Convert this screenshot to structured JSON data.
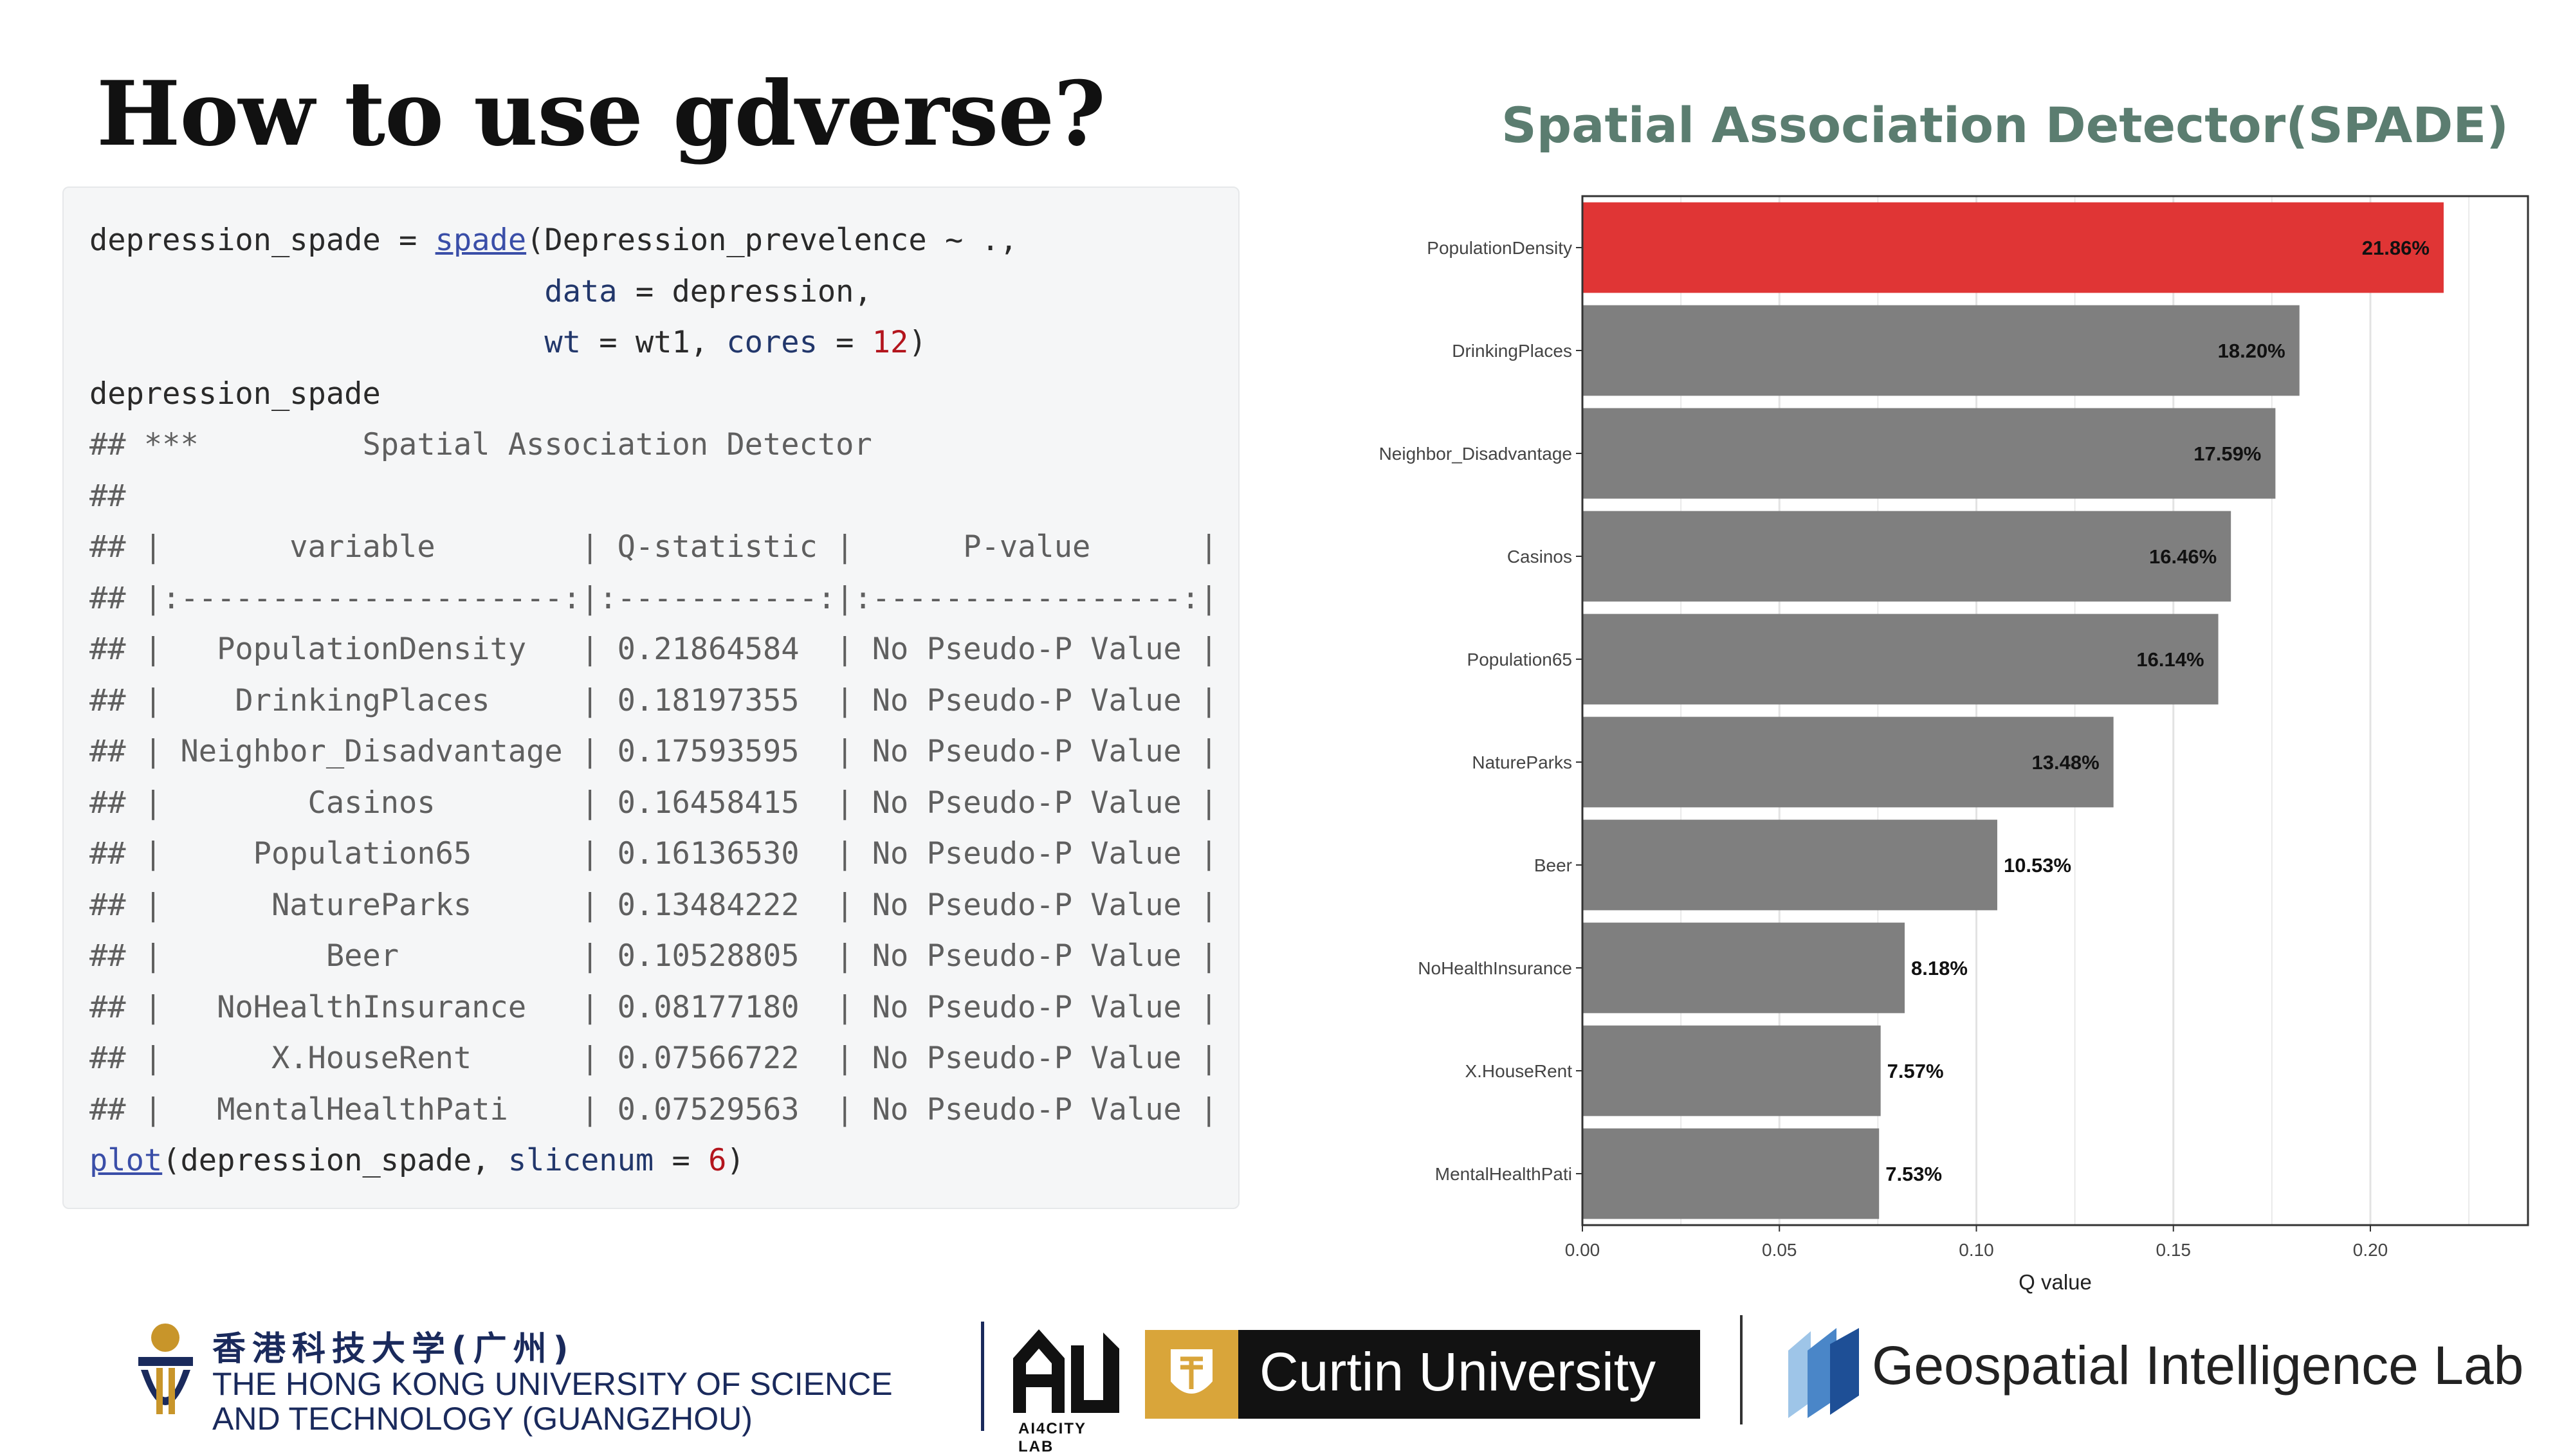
{
  "title": "How to use gdverse?",
  "subtitle": "Spatial Association Detector(SPADE)",
  "code": {
    "call_line1_var": "depression_spade",
    "call_line1_op": " = ",
    "call_line1_fn": "spade",
    "call_line1_rest": "(Depression_prevelence ~ .,",
    "call_line2_arg": "data",
    "call_line2_rest": " = depression,",
    "call_line3_arg": "wt",
    "call_line3_mid": " = wt1, ",
    "call_line3_arg2": "cores",
    "call_line3_eq": " = ",
    "call_line3_num": "12",
    "call_line3_close": ")",
    "print_line": "depression_spade",
    "output_lines": [
      "## ***         Spatial Association Detector",
      "##",
      "## |       variable        | Q-statistic |      P-value      |",
      "## |:---------------------:|:-----------:|:-----------------:|",
      "## |   PopulationDensity   | 0.21864584  | No Pseudo-P Value |",
      "## |    DrinkingPlaces     | 0.18197355  | No Pseudo-P Value |",
      "## | Neighbor_Disadvantage | 0.17593595  | No Pseudo-P Value |",
      "## |        Casinos        | 0.16458415  | No Pseudo-P Value |",
      "## |     Population65      | 0.16136530  | No Pseudo-P Value |",
      "## |      NatureParks      | 0.13484222  | No Pseudo-P Value |",
      "## |         Beer          | 0.10528805  | No Pseudo-P Value |",
      "## |   NoHealthInsurance   | 0.08177180  | No Pseudo-P Value |",
      "## |      X.HouseRent      | 0.07566722  | No Pseudo-P Value |",
      "## |   MentalHealthPati    | 0.07529563  | No Pseudo-P Value |"
    ],
    "plot_fn": "plot",
    "plot_rest": "(depression_spade, ",
    "plot_arg": "slicenum",
    "plot_eq": " = ",
    "plot_num": "6",
    "plot_close": ")"
  },
  "chart_data": {
    "type": "bar",
    "orientation": "horizontal",
    "categories": [
      "PopulationDensity",
      "DrinkingPlaces",
      "Neighbor_Disadvantage",
      "Casinos",
      "Population65",
      "NatureParks",
      "Beer",
      "NoHealthInsurance",
      "X.HouseRent",
      "MentalHealthPati"
    ],
    "values": [
      0.2186,
      0.182,
      0.1759,
      0.1646,
      0.1614,
      0.1348,
      0.1053,
      0.0818,
      0.0757,
      0.0753
    ],
    "labels": [
      "21.86%",
      "18.20%",
      "17.59%",
      "16.46%",
      "16.14%",
      "13.48%",
      "10.53%",
      "8.18%",
      "7.57%",
      "7.53%"
    ],
    "highlight_color": "#e03535",
    "bar_color": "#7f7f7f",
    "xlabel": "Q value",
    "ylabel": "",
    "xlim": [
      0,
      0.24
    ],
    "xticks": [
      "0.00",
      "0.05",
      "0.10",
      "0.15",
      "0.20"
    ],
    "xtick_values": [
      0,
      0.05,
      0.1,
      0.15,
      0.2
    ],
    "grid": true
  },
  "logos": {
    "hkust_cn": "香港科技大学(广州)",
    "hkust_en_line1": "THE HONG KONG UNIVERSITY OF SCIENCE",
    "hkust_en_line2": "AND TECHNOLOGY (GUANGZHOU)",
    "ai4city": "AI4CITY LAB",
    "curtin": "Curtin University",
    "gil": "Geospatial Intelligence Lab"
  }
}
